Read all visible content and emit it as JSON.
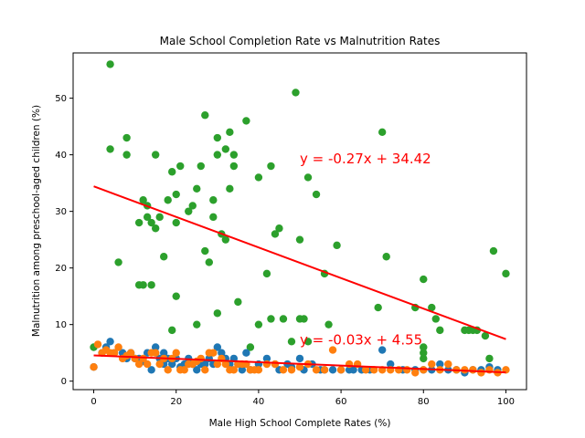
{
  "chart_data": {
    "type": "scatter",
    "title": "Male School Completion Rate vs Malnutrition Rates",
    "xlabel": "Male High School Complete Rates (%)",
    "ylabel": "Malnutrition among preschool-aged children (%)",
    "xlim": [
      -5,
      105
    ],
    "ylim": [
      -1.5,
      58
    ],
    "xticks": [
      0,
      20,
      40,
      60,
      80,
      100
    ],
    "yticks": [
      0,
      10,
      20,
      30,
      40,
      50
    ],
    "grid": false,
    "colors": {
      "green": "#2ca02c",
      "blue": "#1f77b4",
      "orange": "#ff7f0e",
      "red": "#ff0000"
    },
    "series": [
      {
        "color": "#2ca02c",
        "x": [
          0,
          4,
          4,
          6,
          8,
          8,
          11,
          11,
          12,
          12,
          13,
          13,
          14,
          14,
          15,
          15,
          16,
          17,
          18,
          19,
          19,
          20,
          20,
          20,
          21,
          23,
          24,
          25,
          25,
          26,
          27,
          27,
          28,
          29,
          29,
          30,
          30,
          30,
          31,
          32,
          32,
          33,
          33,
          34,
          34,
          35,
          37,
          38,
          40,
          40,
          42,
          43,
          43,
          44,
          45,
          46,
          48,
          49,
          50,
          50,
          51,
          52,
          52,
          54,
          56,
          57,
          59,
          69,
          70,
          71,
          78,
          80,
          80,
          80,
          80,
          82,
          83,
          84,
          90,
          91,
          92,
          93,
          95,
          96,
          97,
          100
        ],
        "y": [
          6,
          56,
          41,
          21,
          40,
          43,
          17,
          28,
          32,
          17,
          29,
          31,
          17,
          28,
          40,
          27,
          29,
          22,
          32,
          9,
          37,
          15,
          33,
          28,
          38,
          30,
          31,
          10,
          34,
          38,
          47,
          23,
          21,
          32,
          29,
          12,
          40,
          43,
          26,
          25,
          41,
          44,
          34,
          40,
          38,
          14,
          46,
          6,
          36,
          10,
          19,
          38,
          11,
          26,
          27,
          11,
          7,
          51,
          11,
          25,
          11,
          36,
          7,
          33,
          19,
          10,
          24,
          13,
          44,
          22,
          13,
          18,
          6,
          5,
          4,
          13,
          11,
          9,
          9,
          9,
          9,
          9,
          8,
          4,
          23,
          19
        ]
      },
      {
        "color": "#1f77b4",
        "x": [
          0,
          2,
          3,
          4,
          5,
          7,
          8,
          9,
          10,
          11,
          12,
          13,
          14,
          15,
          15,
          16,
          17,
          17,
          18,
          19,
          20,
          21,
          22,
          23,
          24,
          25,
          26,
          27,
          28,
          29,
          30,
          31,
          32,
          33,
          34,
          35,
          36,
          37,
          38,
          40,
          42,
          44,
          45,
          47,
          48,
          50,
          51,
          53,
          55,
          56,
          58,
          60,
          62,
          63,
          65,
          67,
          70,
          72,
          75,
          78,
          80,
          82,
          84,
          86,
          88,
          90,
          92,
          94,
          96,
          98
        ],
        "y": [
          2.5,
          5,
          6,
          7,
          5,
          5,
          4,
          5,
          4,
          4,
          3.5,
          5,
          2,
          5,
          6,
          4,
          3,
          5,
          4,
          3,
          4,
          2.5,
          3,
          4,
          3,
          2,
          3,
          3,
          4,
          3,
          6,
          5,
          4,
          3,
          4,
          3,
          2,
          5,
          2,
          3,
          4,
          3,
          2,
          3,
          2.5,
          4,
          2,
          3,
          2,
          2,
          2,
          2,
          2,
          2,
          2,
          2,
          5.5,
          3,
          2,
          2,
          2,
          2,
          3,
          2,
          2,
          1.5,
          2,
          2,
          2.5,
          2
        ]
      },
      {
        "color": "#ff7f0e",
        "x": [
          0,
          1,
          2,
          3,
          4,
          5,
          6,
          7,
          8,
          9,
          10,
          11,
          12,
          13,
          14,
          15,
          16,
          17,
          18,
          19,
          20,
          21,
          22,
          23,
          24,
          25,
          26,
          27,
          28,
          29,
          30,
          31,
          32,
          33,
          34,
          35,
          36,
          37,
          38,
          39,
          40,
          42,
          44,
          46,
          48,
          50,
          52,
          54,
          56,
          58,
          60,
          62,
          64,
          66,
          68,
          70,
          72,
          74,
          76,
          78,
          80,
          82,
          84,
          86,
          88,
          90,
          92,
          94,
          96,
          98,
          100
        ],
        "y": [
          2.5,
          6.5,
          5,
          5.5,
          5,
          5,
          6,
          4,
          4.5,
          5,
          4,
          3,
          4,
          3,
          5,
          5,
          3,
          4,
          2,
          4,
          5,
          2,
          2,
          3,
          3,
          3.5,
          4,
          2,
          5,
          5,
          3,
          4,
          3,
          2,
          2,
          3,
          3,
          3,
          2,
          2,
          2,
          3,
          3,
          2,
          2,
          2.5,
          3,
          2,
          2,
          5.5,
          2,
          3,
          3,
          2,
          2,
          2,
          2,
          2,
          2,
          1.5,
          2,
          3,
          2,
          3,
          2,
          2,
          2,
          1.5,
          2,
          1.5,
          2
        ]
      }
    ],
    "trendlines": [
      {
        "color": "#ff0000",
        "slope": -0.27,
        "intercept": 34.42,
        "x_range": [
          0,
          100
        ],
        "label": "y = -0.27x + 34.42",
        "label_pos": [
          50,
          38.5
        ]
      },
      {
        "color": "#ff0000",
        "slope": -0.03,
        "intercept": 4.55,
        "x_range": [
          0,
          100
        ],
        "label": "y = -0.03x + 4.55",
        "label_pos": [
          50,
          6.5
        ]
      }
    ]
  }
}
